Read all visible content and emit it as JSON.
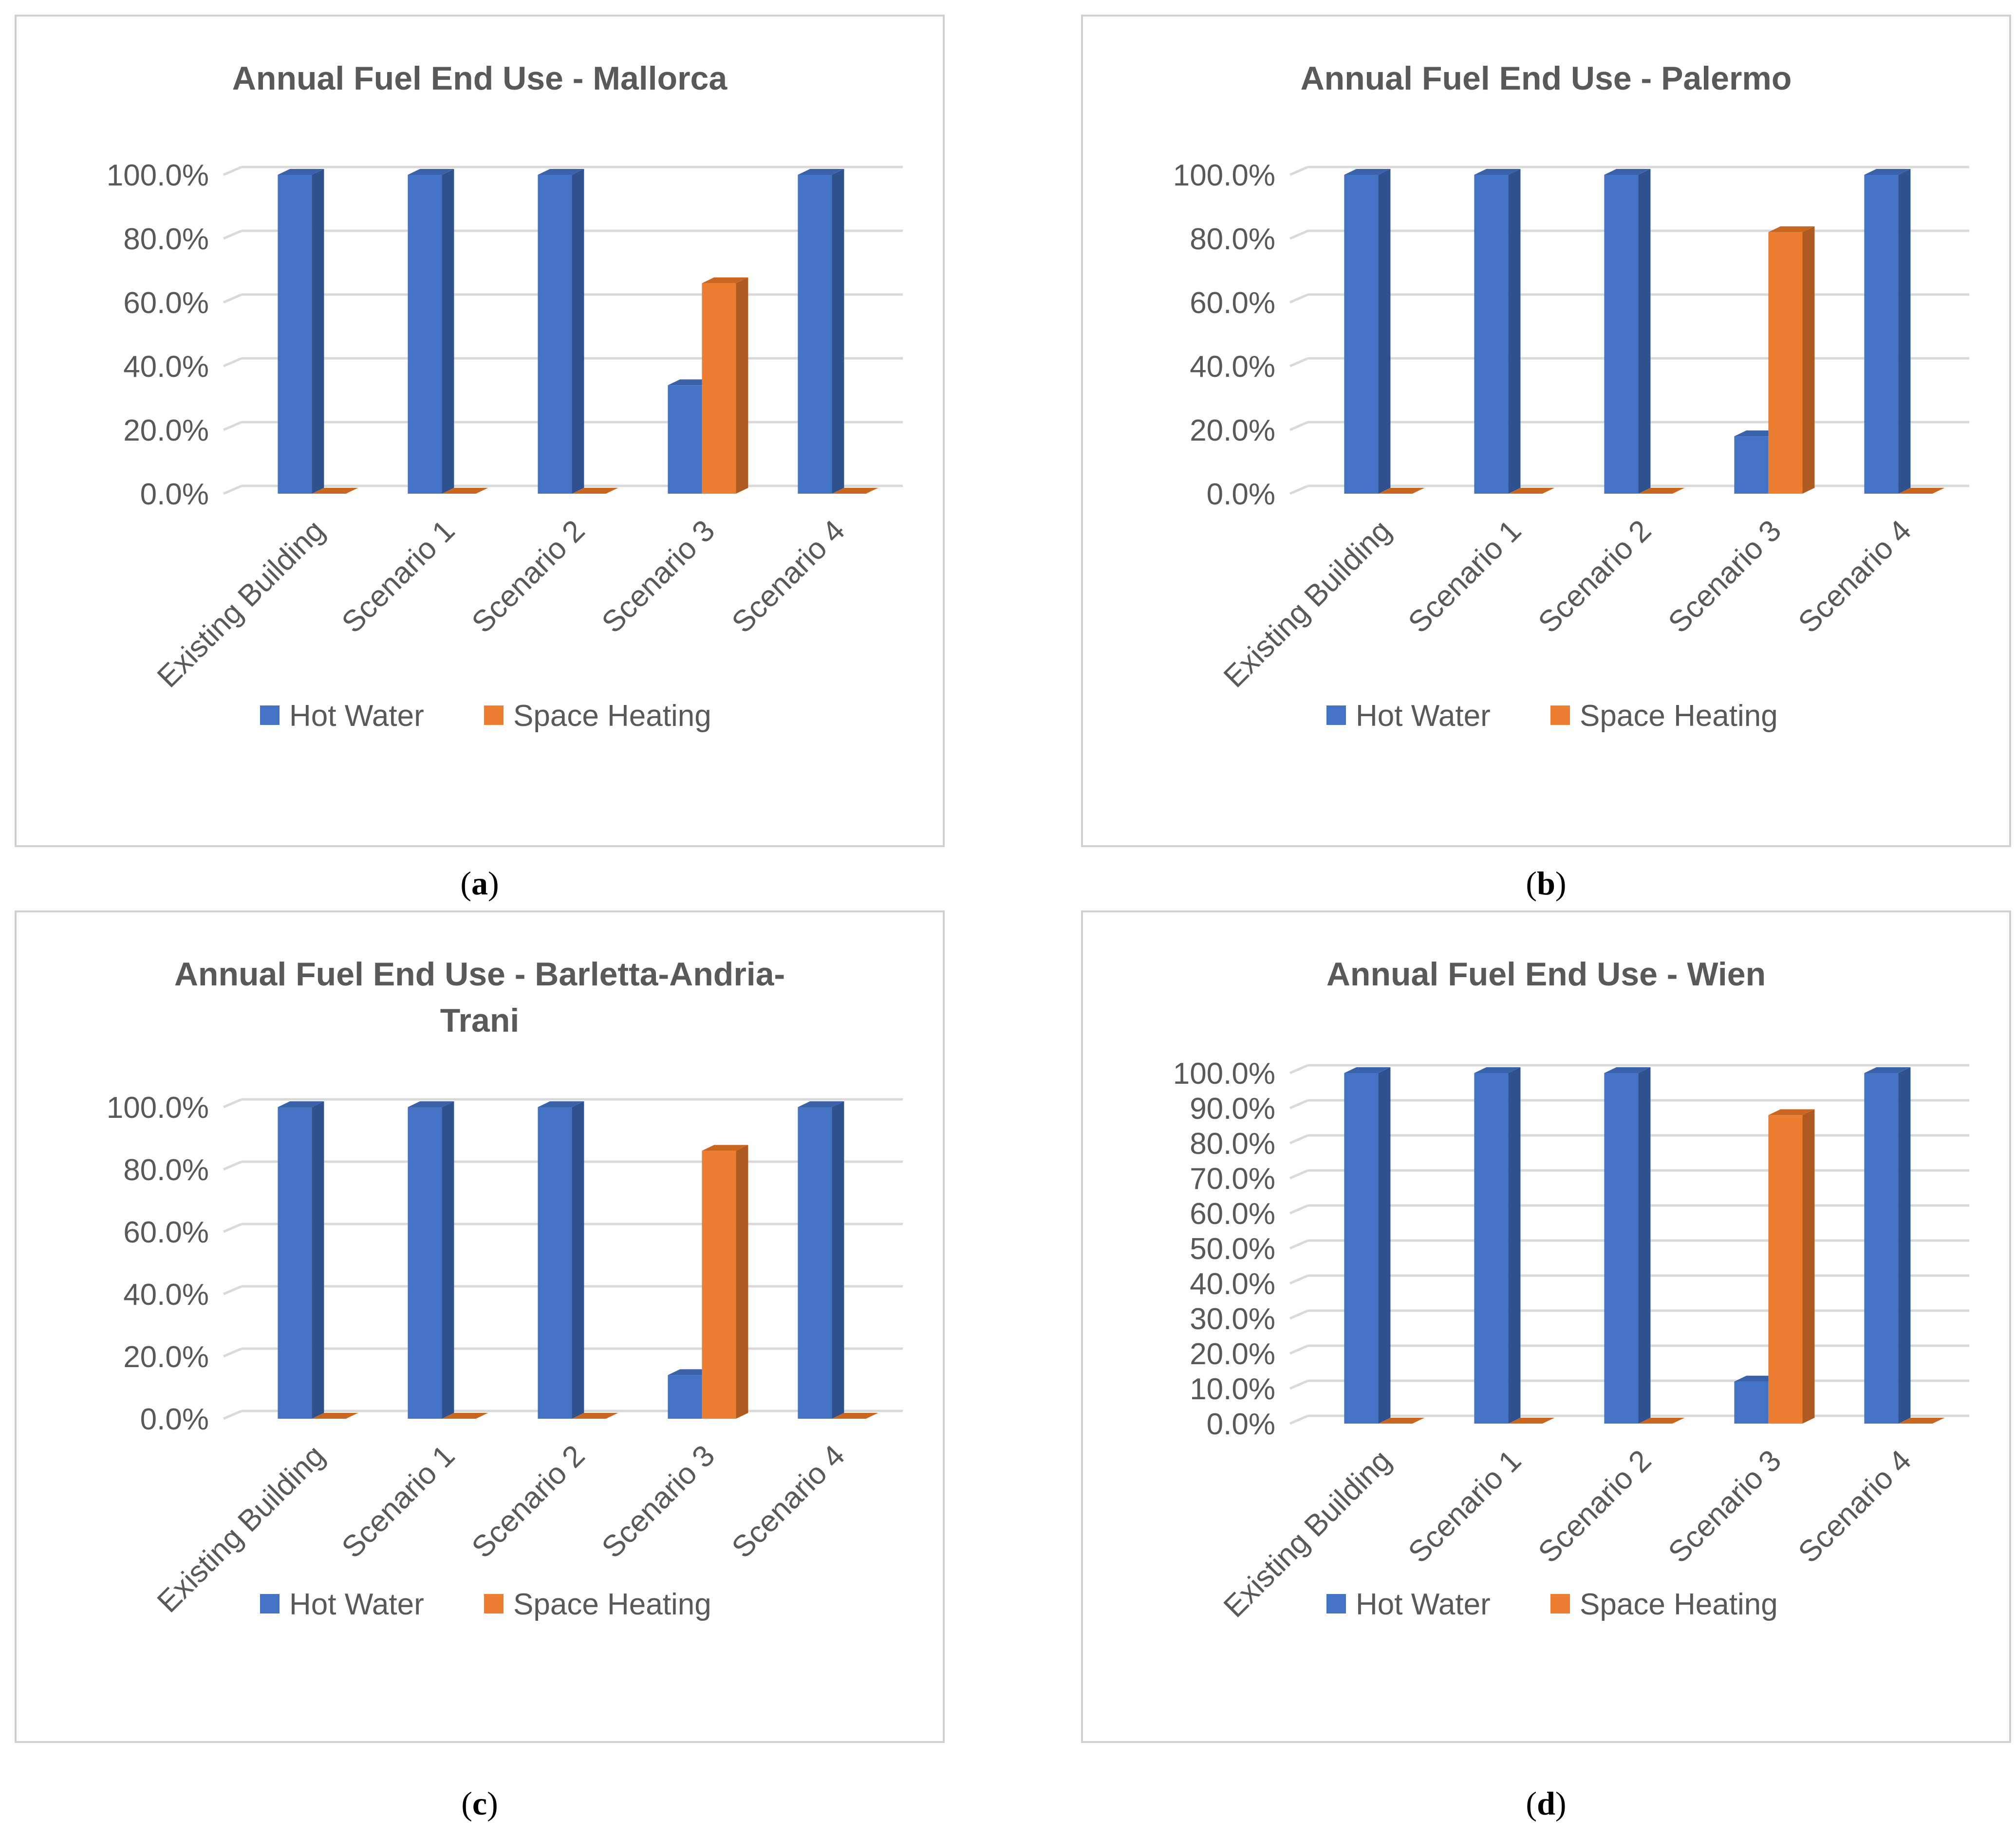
{
  "legend": {
    "hot_water": "Hot Water",
    "space_heating": "Space Heating"
  },
  "colors": {
    "hot_water": "#4472C4",
    "hot_water_side": "#2F528F",
    "hot_water_top": "#3A62AA",
    "space_heating": "#ED7D31",
    "space_heating_side": "#AE5A21",
    "space_heating_top": "#C9661F",
    "gridline": "#D9D9D9",
    "title": "#595959",
    "tick": "#595959"
  },
  "captions": [
    "a",
    "b",
    "c",
    "d"
  ],
  "chart_data": [
    {
      "type": "bar",
      "title": "Annual Fuel End Use - Mallorca",
      "categories": [
        "Existing Building",
        "Scenario 1",
        "Scenario 2",
        "Scenario 3",
        "Scenario 4"
      ],
      "series": [
        {
          "name": "Hot Water",
          "values": [
            100.0,
            100.0,
            100.0,
            34.0,
            100.0
          ]
        },
        {
          "name": "Space Heating",
          "values": [
            0.0,
            0.0,
            0.0,
            66.0,
            0.0
          ]
        }
      ],
      "ylim": [
        0,
        100
      ],
      "yticks": [
        "0.0%",
        "20.0%",
        "40.0%",
        "60.0%",
        "80.0%",
        "100.0%"
      ],
      "legend_position": "bottom",
      "grid": true
    },
    {
      "type": "bar",
      "title": "Annual Fuel End Use - Palermo",
      "categories": [
        "Existing Building",
        "Scenario 1",
        "Scenario 2",
        "Scenario 3",
        "Scenario 4"
      ],
      "series": [
        {
          "name": "Hot Water",
          "values": [
            100.0,
            100.0,
            100.0,
            18.0,
            100.0
          ]
        },
        {
          "name": "Space Heating",
          "values": [
            0.0,
            0.0,
            0.0,
            82.0,
            0.0
          ]
        }
      ],
      "ylim": [
        0,
        100
      ],
      "yticks": [
        "0.0%",
        "20.0%",
        "40.0%",
        "60.0%",
        "80.0%",
        "100.0%"
      ],
      "legend_position": "bottom",
      "grid": true
    },
    {
      "type": "bar",
      "title": "Annual Fuel End Use - Barletta-Andria-Trani",
      "title_lines": [
        "Annual Fuel End Use - Barletta-Andria-",
        "Trani"
      ],
      "categories": [
        "Existing Building",
        "Scenario 1",
        "Scenario 2",
        "Scenario 3",
        "Scenario 4"
      ],
      "series": [
        {
          "name": "Hot Water",
          "values": [
            100.0,
            100.0,
            100.0,
            14.0,
            100.0
          ]
        },
        {
          "name": "Space Heating",
          "values": [
            0.0,
            0.0,
            0.0,
            86.0,
            0.0
          ]
        }
      ],
      "ylim": [
        0,
        100
      ],
      "yticks": [
        "0.0%",
        "20.0%",
        "40.0%",
        "60.0%",
        "80.0%",
        "100.0%"
      ],
      "legend_position": "bottom",
      "grid": true
    },
    {
      "type": "bar",
      "title": "Annual Fuel End Use - Wien",
      "categories": [
        "Existing Building",
        "Scenario 1",
        "Scenario 2",
        "Scenario 3",
        "Scenario 4"
      ],
      "series": [
        {
          "name": "Hot Water",
          "values": [
            100.0,
            100.0,
            100.0,
            12.0,
            100.0
          ]
        },
        {
          "name": "Space Heating",
          "values": [
            0.0,
            0.0,
            0.0,
            88.0,
            0.0
          ]
        }
      ],
      "ylim": [
        0,
        100
      ],
      "yticks": [
        "0.0%",
        "10.0%",
        "20.0%",
        "30.0%",
        "40.0%",
        "50.0%",
        "60.0%",
        "70.0%",
        "80.0%",
        "90.0%",
        "100.0%"
      ],
      "legend_position": "bottom",
      "grid": true
    }
  ]
}
